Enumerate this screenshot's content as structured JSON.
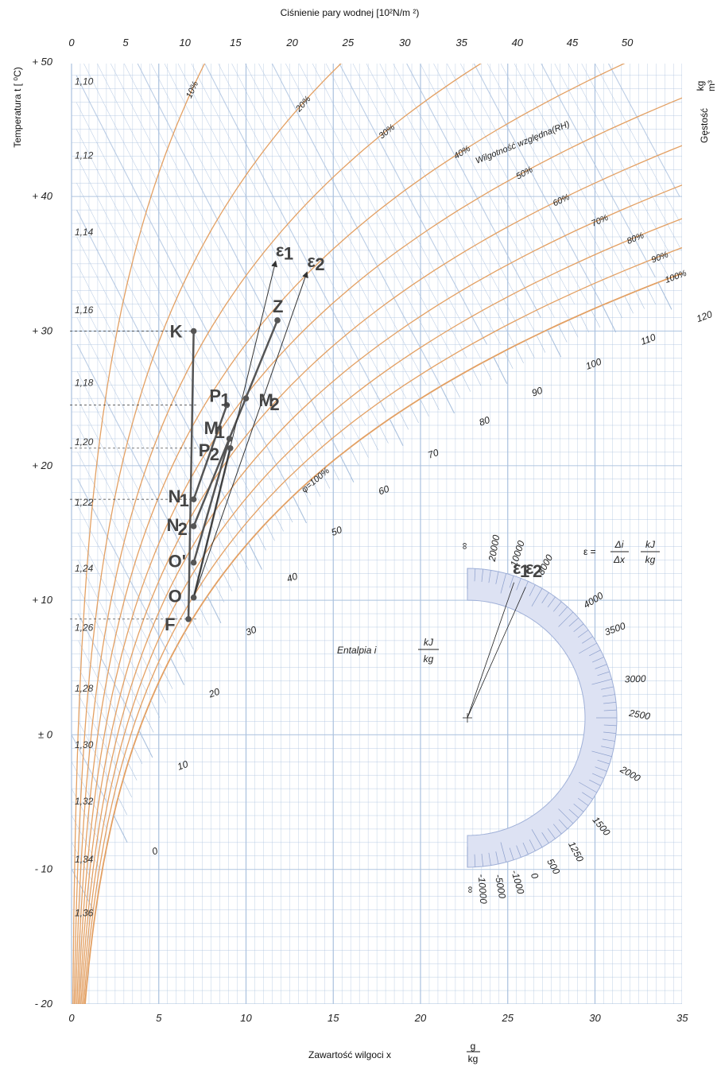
{
  "chart_data": {
    "type": "psychrometric",
    "title": "Ciśnienie pary wodnej [10²N/m ²)",
    "xlabel": "Zawartość wilgoci  x",
    "xlabel_unit_num": "g",
    "xlabel_unit_den": "kg",
    "ylabel": "Temperatura  t [ ⁰C)",
    "right_label": "Gęstość",
    "right_unit_num": "kg",
    "right_unit_den": "m³",
    "xlim": [
      0,
      35
    ],
    "ylim": [
      -20,
      50
    ],
    "x_ticks": [
      {
        "v": 0,
        "label": "0"
      },
      {
        "v": 5,
        "label": "5"
      },
      {
        "v": 10,
        "label": "10"
      },
      {
        "v": 15,
        "label": "15"
      },
      {
        "v": 20,
        "label": "20"
      },
      {
        "v": 25,
        "label": "25"
      },
      {
        "v": 30,
        "label": "30"
      },
      {
        "v": 35,
        "label": "35"
      }
    ],
    "y_ticks": [
      {
        "v": 50,
        "label": "+ 50"
      },
      {
        "v": 40,
        "label": "+ 40"
      },
      {
        "v": 30,
        "label": "+ 30"
      },
      {
        "v": 20,
        "label": "+ 20"
      },
      {
        "v": 10,
        "label": "+ 10"
      },
      {
        "v": 0,
        "label": "± 0"
      },
      {
        "v": -10,
        "label": "- 10"
      },
      {
        "v": -20,
        "label": "- 20"
      }
    ],
    "top_ticks": [
      {
        "v": 0,
        "x": 0.0,
        "label": "0"
      },
      {
        "v": 5,
        "x": 3.1,
        "label": "5"
      },
      {
        "v": 10,
        "x": 6.5,
        "label": "10"
      },
      {
        "v": 15,
        "x": 9.4,
        "label": "15"
      },
      {
        "v": 20,
        "x": 12.65,
        "label": "20"
      },
      {
        "v": 25,
        "x": 15.85,
        "label": "25"
      },
      {
        "v": 30,
        "x": 19.1,
        "label": "30"
      },
      {
        "v": 35,
        "x": 22.35,
        "label": "35"
      },
      {
        "v": 40,
        "x": 25.55,
        "label": "40"
      },
      {
        "v": 45,
        "x": 28.7,
        "label": "45"
      },
      {
        "v": 50,
        "x": 31.85,
        "label": "50"
      }
    ],
    "density_labels": [
      {
        "t": 48.5,
        "label": "1,10"
      },
      {
        "t": 43.0,
        "label": "1,12"
      },
      {
        "t": 37.3,
        "label": "1,14"
      },
      {
        "t": 31.5,
        "label": "1,16"
      },
      {
        "t": 26.1,
        "label": "1,18"
      },
      {
        "t": 21.7,
        "label": "1,20"
      },
      {
        "t": 17.2,
        "label": "1,22"
      },
      {
        "t": 12.3,
        "label": "1,24"
      },
      {
        "t": 7.9,
        "label": "1,26"
      },
      {
        "t": 3.4,
        "label": "1,28"
      },
      {
        "t": -0.8,
        "label": "1,30"
      },
      {
        "t": -5.0,
        "label": "1,32"
      },
      {
        "t": -9.3,
        "label": "1,34"
      },
      {
        "t": -13.3,
        "label": "1,36"
      }
    ],
    "rh_curves": [
      {
        "rh": 10,
        "label": "10%"
      },
      {
        "rh": 20,
        "label": "20%"
      },
      {
        "rh": 30,
        "label": "30%"
      },
      {
        "rh": 40,
        "label": "40%"
      },
      {
        "rh": 50,
        "label": "50%"
      },
      {
        "rh": 60,
        "label": "60%"
      },
      {
        "rh": 70,
        "label": "70%"
      },
      {
        "rh": 80,
        "label": "80%"
      },
      {
        "rh": 90,
        "label": "90%"
      },
      {
        "rh": 100,
        "label": "100%"
      }
    ],
    "rh_note": "Wilgotność względna(RH)",
    "rh_small_label": "φ=100%",
    "enthalpy_ticks": [
      {
        "i": 0,
        "label": "0"
      },
      {
        "i": 10,
        "label": "10"
      },
      {
        "i": 20,
        "label": "20"
      },
      {
        "i": 30,
        "label": "30"
      },
      {
        "i": 40,
        "label": "40"
      },
      {
        "i": 50,
        "label": "50"
      },
      {
        "i": 60,
        "label": "60"
      },
      {
        "i": 70,
        "label": "70"
      },
      {
        "i": 80,
        "label": "80"
      },
      {
        "i": 90,
        "label": "90"
      },
      {
        "i": 100,
        "label": "100"
      },
      {
        "i": 110,
        "label": "110"
      },
      {
        "i": 120,
        "label": "120"
      }
    ],
    "enthalpy_label": "Entalpia  i",
    "enthalpy_unit_num": "kJ",
    "enthalpy_unit_den": "kg",
    "points": [
      {
        "name": "K",
        "x": 7.0,
        "t": 30.0
      },
      {
        "name": "N1",
        "x": 7.0,
        "t": 17.5
      },
      {
        "name": "N2",
        "x": 7.0,
        "t": 15.5
      },
      {
        "name": "O'",
        "x": 7.0,
        "t": 12.8
      },
      {
        "name": "O",
        "x": 7.0,
        "t": 10.2
      },
      {
        "name": "F",
        "x": 6.7,
        "t": 8.6
      },
      {
        "name": "P1",
        "x": 8.9,
        "t": 24.5
      },
      {
        "name": "M1",
        "x": 9.05,
        "t": 22.0
      },
      {
        "name": "P2",
        "x": 9.1,
        "t": 21.3
      },
      {
        "name": "M2",
        "x": 10.0,
        "t": 25.0
      },
      {
        "name": "Z",
        "x": 11.8,
        "t": 30.8
      }
    ],
    "point_labels": {
      "K": {
        "main": "K",
        "sub": ""
      },
      "N1": {
        "main": "N",
        "sub": "1"
      },
      "N2": {
        "main": "N",
        "sub": "2"
      },
      "O'": {
        "main": "O'",
        "sub": ""
      },
      "O": {
        "main": "O",
        "sub": ""
      },
      "F": {
        "main": "F",
        "sub": ""
      },
      "P1": {
        "main": "P",
        "sub": "1"
      },
      "M1": {
        "main": "M",
        "sub": "1"
      },
      "P2": {
        "main": "P",
        "sub": "2"
      },
      "M2": {
        "main": "M",
        "sub": "2"
      },
      "Z": {
        "main": "Z",
        "sub": ""
      }
    },
    "process_lines": [
      [
        "K",
        "F"
      ],
      [
        "N1",
        "P1"
      ],
      [
        "N2",
        "Z"
      ],
      [
        "O'",
        "M1"
      ],
      [
        "O",
        "P2"
      ]
    ],
    "epsilon_arrows": [
      {
        "label": "ε",
        "sub": "1",
        "from": [
          7.0,
          10.2
        ],
        "to": [
          11.7,
          35.2
        ]
      },
      {
        "label": "ε",
        "sub": "2",
        "from": [
          7.0,
          10.2
        ],
        "to": [
          13.5,
          34.4
        ]
      }
    ],
    "protractor": {
      "formula_lhs": "ε =",
      "formula_num": "Δi",
      "formula_den": "Δx",
      "formula_unit_num": "kJ",
      "formula_unit_den": "kg",
      "ticks": [
        {
          "value": "∞",
          "angle": -90
        },
        {
          "value": "20000",
          "angle": -80
        },
        {
          "value": "10000",
          "angle": -72
        },
        {
          "value": "8000",
          "angle": -62
        },
        {
          "value": "4000",
          "angle": -42
        },
        {
          "value": "3500",
          "angle": -30
        },
        {
          "value": "3000",
          "angle": -12
        },
        {
          "value": "2500",
          "angle": 0
        },
        {
          "value": "2000",
          "angle": 20
        },
        {
          "value": "1500",
          "angle": 40
        },
        {
          "value": "1250",
          "angle": 52
        },
        {
          "value": "500",
          "angle": 61
        },
        {
          "value": "0",
          "angle": 68
        },
        {
          "value": "-1000",
          "angle": 74
        },
        {
          "value": "-5000",
          "angle": 80
        },
        {
          "value": "-10000",
          "angle": 86
        },
        {
          "value": "∞",
          "angle": 90
        }
      ],
      "eps1_label": "ε",
      "eps1_sub": "1",
      "eps2_label": "ε",
      "eps2_sub": "2"
    },
    "colors": {
      "grid": "#aac1de",
      "rh_curve": "#e3a063",
      "process": "#555555",
      "protractor_fill": "#dde2f3"
    }
  }
}
